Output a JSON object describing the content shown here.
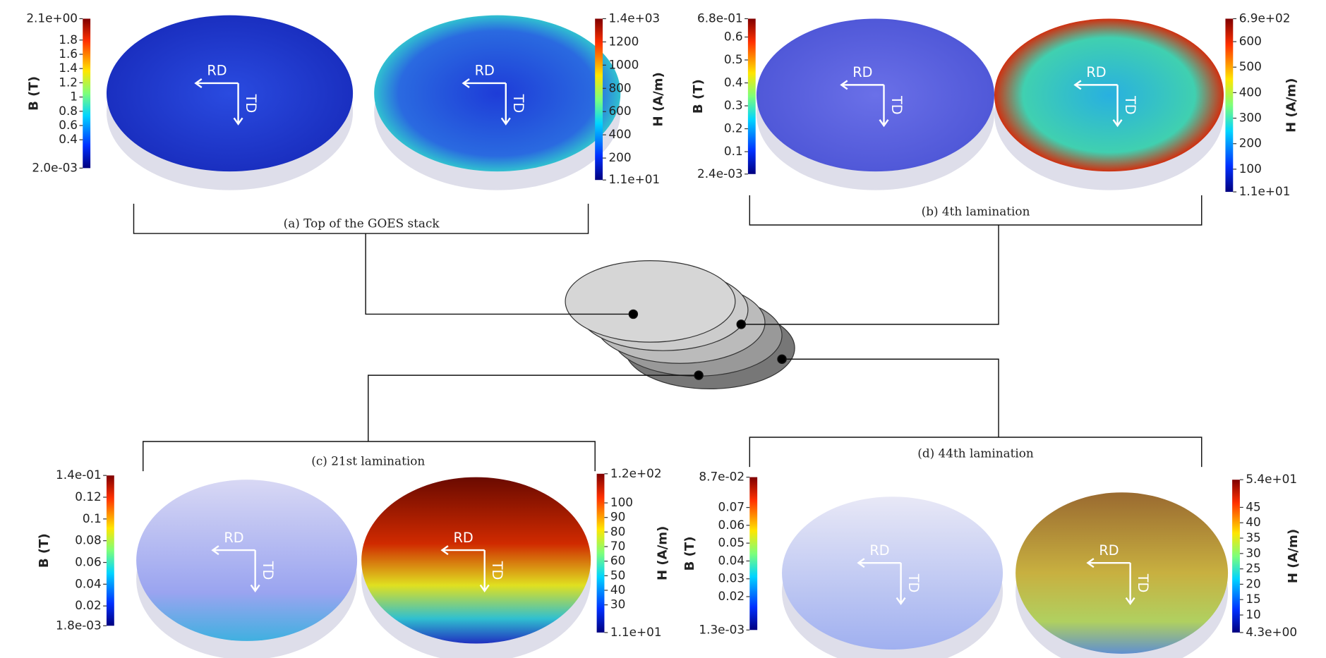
{
  "panels": [
    {
      "caption": "(a) Top of the GOES stack",
      "direction_labels": [
        "RD",
        "TD"
      ],
      "colorbars": [
        {
          "title": "B (T)",
          "range": [
            {
              "value": 0.002,
              "label": "2.0e-03"
            },
            {
              "value": 2.1,
              "label": "2.1e+00"
            }
          ],
          "ticks": [
            0.4,
            0.6,
            0.8,
            1,
            1.2,
            1.4,
            1.6,
            1.8
          ]
        },
        {
          "title": "H (A/m)",
          "range": [
            {
              "value": 11,
              "label": "1.1e+01"
            },
            {
              "value": 1400,
              "label": "1.4e+03"
            }
          ],
          "ticks": [
            200,
            400,
            600,
            800,
            1000,
            1200
          ]
        }
      ]
    },
    {
      "caption": "(b) 4th lamination",
      "direction_labels": [
        "RD",
        "TD"
      ],
      "colorbars": [
        {
          "title": "B (T)",
          "range": [
            {
              "value": 0.0024,
              "label": "2.4e-03"
            },
            {
              "value": 0.68,
              "label": "6.8e-01"
            }
          ],
          "ticks": [
            0.1,
            0.2,
            0.3,
            0.4,
            0.5,
            0.6
          ]
        },
        {
          "title": "H (A/m)",
          "range": [
            {
              "value": 11,
              "label": "1.1e+01"
            },
            {
              "value": 690,
              "label": "6.9e+02"
            }
          ],
          "ticks": [
            100,
            200,
            300,
            400,
            500,
            600
          ]
        }
      ]
    },
    {
      "caption": "(c) 21st lamination",
      "direction_labels": [
        "RD",
        "TD"
      ],
      "colorbars": [
        {
          "title": "B (T)",
          "range": [
            {
              "value": 0.0018,
              "label": "1.8e-03"
            },
            {
              "value": 0.14,
              "label": "1.4e-01"
            }
          ],
          "ticks": [
            0.02,
            0.04,
            0.06,
            0.08,
            0.1,
            0.12
          ]
        },
        {
          "title": "H (A/m)",
          "range": [
            {
              "value": 11,
              "label": "1.1e+01"
            },
            {
              "value": 120,
              "label": "1.2e+02"
            }
          ],
          "ticks": [
            30,
            40,
            50,
            60,
            70,
            80,
            90,
            100
          ]
        }
      ]
    },
    {
      "caption": "(d) 44th lamination",
      "direction_labels": [
        "RD",
        "TD"
      ],
      "colorbars": [
        {
          "title": "B (T)",
          "range": [
            {
              "value": 0.0013,
              "label": "1.3e-03"
            },
            {
              "value": 0.087,
              "label": "8.7e-02"
            }
          ],
          "ticks": [
            0.02,
            0.03,
            0.04,
            0.05,
            0.06,
            0.07
          ]
        },
        {
          "title": "H (A/m)",
          "range": [
            {
              "value": 4.3,
              "label": "4.3e+00"
            },
            {
              "value": 54,
              "label": "5.4e+01"
            }
          ],
          "ticks": [
            10,
            15,
            20,
            25,
            30,
            35,
            40,
            45
          ]
        }
      ]
    }
  ]
}
